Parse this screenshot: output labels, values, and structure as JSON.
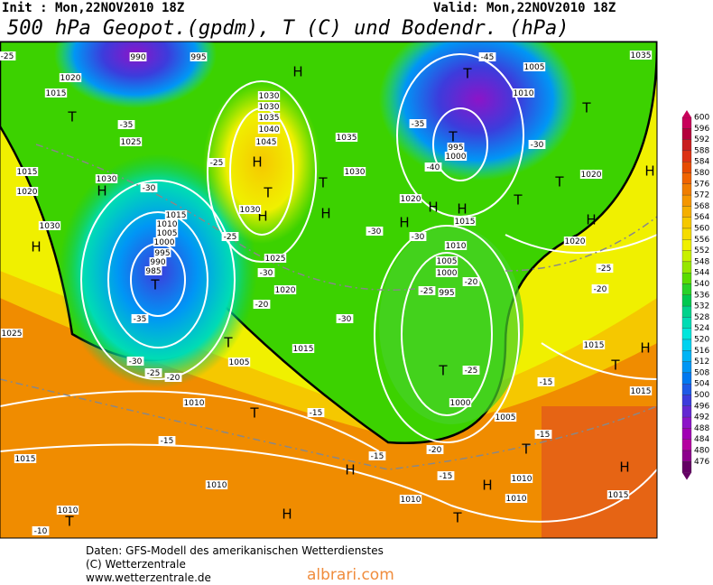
{
  "header": {
    "init": "Init : Mon,22NOV2010 18Z",
    "valid": "Valid: Mon,22NOV2010 18Z",
    "title": "500 hPa Geopot.(gpdm), T (C) und Bodendr. (hPa)"
  },
  "colorbar": {
    "levels": [
      600,
      596,
      592,
      588,
      584,
      580,
      576,
      572,
      568,
      564,
      560,
      556,
      552,
      548,
      544,
      540,
      536,
      532,
      528,
      524,
      520,
      516,
      512,
      508,
      504,
      500,
      496,
      492,
      488,
      484,
      480,
      476
    ],
    "colors": [
      "#c8005a",
      "#b4003c",
      "#c81e1e",
      "#dc3214",
      "#e64b00",
      "#f06400",
      "#f07d00",
      "#f59600",
      "#f5af00",
      "#f5c800",
      "#f5dc00",
      "#f0f000",
      "#c8f000",
      "#96e600",
      "#5adc00",
      "#28d228",
      "#00c850",
      "#00d28c",
      "#00dcb4",
      "#00e6dc",
      "#00d2f0",
      "#00b4f5",
      "#0096f5",
      "#0078f0",
      "#1e5ae6",
      "#3c3cdc",
      "#6428d2",
      "#8c14c8",
      "#a000b4",
      "#b400a0",
      "#8c008c",
      "#640064"
    ]
  },
  "map_labels": [
    "T",
    "H",
    "H",
    "T",
    "H",
    "T",
    "H",
    "H",
    "T",
    "H",
    "T",
    "T",
    "H",
    "H",
    "T",
    "T",
    "H",
    "T",
    "T",
    "T",
    "H",
    "H",
    "T",
    "H",
    "T",
    "H",
    "T",
    "H",
    "T",
    "H",
    "T",
    "H",
    "1015",
    "1020",
    "1025",
    "1030",
    "1015",
    "1020",
    "1030",
    "1015",
    "1010",
    "1005",
    "1000",
    "995",
    "990",
    "985",
    "1030",
    "1035",
    "1040",
    "1045",
    "1030",
    "1025",
    "1020",
    "1035",
    "1030",
    "1020",
    "1015",
    "1010",
    "1005",
    "1000",
    "995",
    "1000",
    "1005",
    "1015",
    "1005",
    "1010",
    "1015",
    "1010",
    "1010",
    "1010",
    "1010",
    "1015",
    "1015",
    "1015",
    "1020",
    "1020",
    "1005",
    "1010",
    "1030",
    "1035",
    "995",
    "1000",
    "1025",
    "1010",
    "990",
    "995",
    "-35",
    "-30",
    "-35",
    "-30",
    "-25",
    "-20",
    "-25",
    "-25",
    "-30",
    "-20",
    "-30",
    "-30",
    "-30",
    "-25",
    "-20",
    "-25",
    "-35",
    "-40",
    "-45",
    "-15",
    "-15",
    "-15",
    "-15",
    "-20",
    "-15",
    "-15",
    "-20",
    "-25",
    "-10",
    "-30",
    "-25"
  ],
  "footer": {
    "line1": "Daten: GFS-Modell des amerikanischen Wetterdienstes",
    "line2": "(C) Wetterzentrale",
    "line3": "www.wetterzentrale.de",
    "watermark": "albrari.com"
  }
}
